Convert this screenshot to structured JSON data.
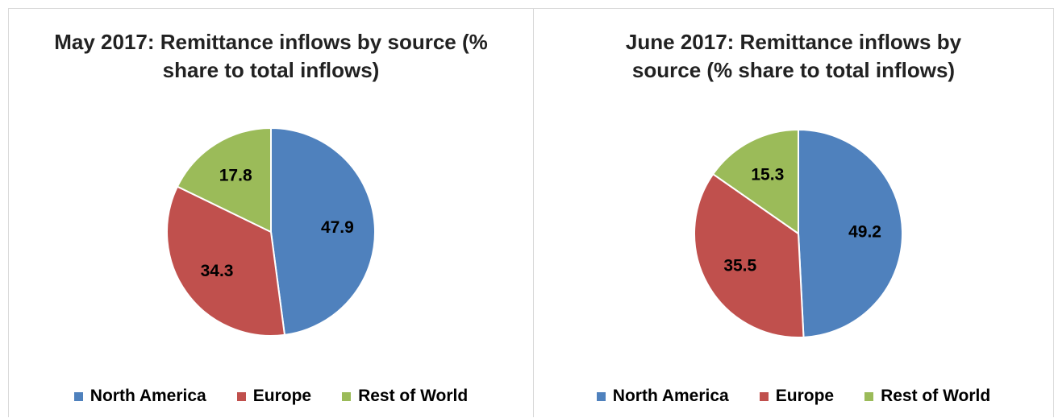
{
  "chart_data": [
    {
      "type": "pie",
      "title": "May 2017: Remittance inflows by source (% share to total inflows)",
      "categories": [
        "North America",
        "Europe",
        "Rest of World"
      ],
      "values": [
        47.9,
        34.3,
        17.8
      ],
      "data_labels": [
        "47.9",
        "34.3",
        "17.8"
      ],
      "colors": [
        "#4F81BD",
        "#C0504D",
        "#9BBB59"
      ],
      "legend": "bottom"
    },
    {
      "type": "pie",
      "title": "June 2017: Remittance inflows by source (% share to total inflows)",
      "categories": [
        "North America",
        "Europe",
        "Rest of World"
      ],
      "values": [
        49.2,
        35.5,
        15.3
      ],
      "data_labels": [
        "49.2",
        "35.5",
        "15.3"
      ],
      "colors": [
        "#4F81BD",
        "#C0504D",
        "#9BBB59"
      ],
      "legend": "bottom"
    }
  ]
}
